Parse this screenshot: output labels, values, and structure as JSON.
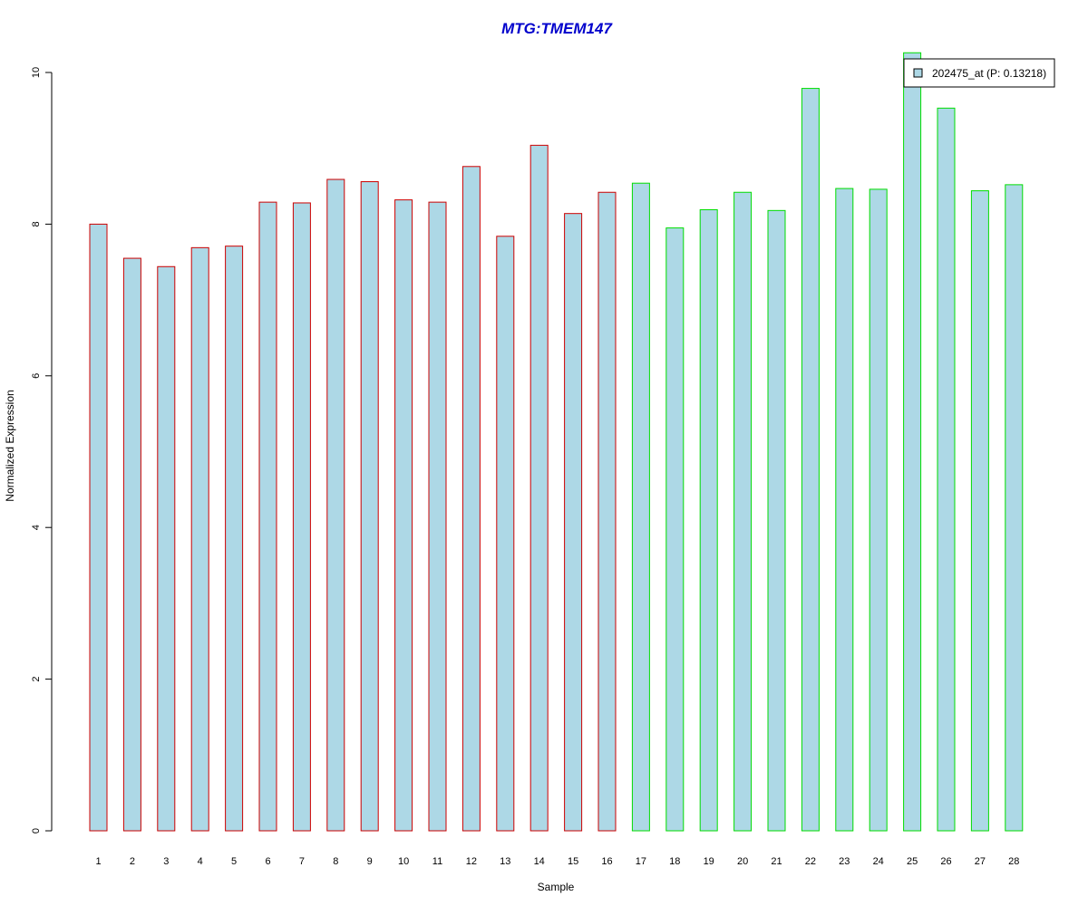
{
  "chart_data": {
    "type": "bar",
    "title": "MTG:TMEM147",
    "xlabel": "Sample",
    "ylabel": "Normalized Expression",
    "ylim": [
      0,
      10
    ],
    "yticks": [
      0,
      2,
      4,
      6,
      8,
      10
    ],
    "grid": false,
    "legend_position": "top-right",
    "categories": [
      "1",
      "2",
      "3",
      "4",
      "5",
      "6",
      "7",
      "8",
      "9",
      "10",
      "11",
      "12",
      "13",
      "14",
      "15",
      "16",
      "17",
      "18",
      "19",
      "20",
      "21",
      "22",
      "23",
      "24",
      "25",
      "26",
      "27",
      "28"
    ],
    "series": [
      {
        "name": "202475_at (P: 0.13218)",
        "values": [
          8.0,
          7.55,
          7.44,
          7.69,
          7.71,
          8.29,
          8.28,
          8.59,
          8.56,
          8.32,
          8.29,
          8.76,
          7.84,
          9.04,
          8.14,
          8.42,
          8.54,
          7.95,
          8.19,
          8.42,
          8.18,
          9.79,
          8.47,
          8.46,
          10.26,
          9.53,
          8.44,
          8.52
        ],
        "groups": [
          "a",
          "a",
          "a",
          "a",
          "a",
          "a",
          "a",
          "a",
          "a",
          "a",
          "a",
          "a",
          "a",
          "a",
          "a",
          "a",
          "b",
          "b",
          "b",
          "b",
          "b",
          "b",
          "b",
          "b",
          "b",
          "b",
          "b",
          "b"
        ]
      }
    ],
    "colors": {
      "title": "#0000cc",
      "bar_fill": "#add8e6",
      "group_a_border": "#cc0000",
      "group_b_border": "#00dd00",
      "axis": "#000000"
    }
  }
}
